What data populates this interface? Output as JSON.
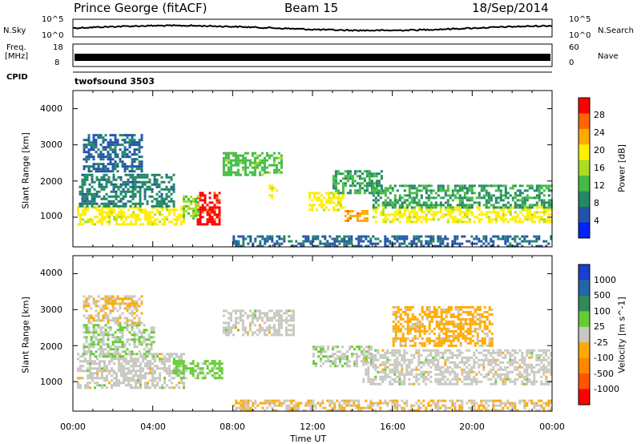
{
  "header": {
    "station": "Prince George (fitACF)",
    "beam": "Beam 15",
    "date": "18/Sep/2014"
  },
  "top_panels": {
    "nsky": {
      "label": "N.Sky",
      "tick_top": "10^5",
      "tick_bottom": "10^0",
      "right_top": "10^5",
      "right_bottom": "10^0",
      "right_label": "N.Search"
    },
    "freq": {
      "label_line1": "Freq.",
      "label_line2": "[MHz]",
      "tick_top": "18",
      "tick_bottom": "8",
      "right_top": "60",
      "right_bottom": "0",
      "right_label": "Nave"
    },
    "cpid": {
      "label": "CPID",
      "program": "twofsound 3503"
    }
  },
  "axes": {
    "xlabel": "Time UT",
    "xticks": [
      "00:00",
      "04:00",
      "08:00",
      "12:00",
      "16:00",
      "20:00",
      "00:00"
    ],
    "ylabel": "Slant Range [km]",
    "yticks": [
      "1000",
      "2000",
      "3000",
      "4000"
    ]
  },
  "colorbars": {
    "power": {
      "label": "Power [dB]",
      "ticks": [
        "28",
        "24",
        "20",
        "16",
        "12",
        "8",
        "4"
      ],
      "colors": [
        "#ff0000",
        "#ff6600",
        "#ffaa00",
        "#ffee00",
        "#aadd22",
        "#44bb44",
        "#228866",
        "#2255aa",
        "#0022ff"
      ]
    },
    "velocity": {
      "label": "Velocity [m s^-1]",
      "ticks": [
        "1000",
        "500",
        "100",
        "25",
        "-25",
        "-100",
        "-500",
        "-1000"
      ],
      "colors": [
        "#1a3fd0",
        "#2266aa",
        "#2e8b57",
        "#66cc33",
        "#c8c8c0",
        "#ffaa00",
        "#ff8800",
        "#ff5500",
        "#ff0000"
      ]
    }
  },
  "chart_data": [
    {
      "type": "heatmap",
      "title": "Power",
      "xlabel": "Time UT",
      "ylabel": "Slant Range [km]",
      "x_range": [
        "00:00",
        "24:00"
      ],
      "ylim": [
        180,
        4500
      ],
      "colorbar": {
        "label": "Power [dB]",
        "range": [
          0,
          30
        ]
      },
      "regions": [
        {
          "t0": 0.2,
          "t1": 5.5,
          "r0": 800,
          "r1": 1300,
          "value": 18
        },
        {
          "t0": 0.3,
          "t1": 5.0,
          "r0": 1300,
          "r1": 2200,
          "value": 8
        },
        {
          "t0": 0.5,
          "t1": 3.5,
          "r0": 2300,
          "r1": 3300,
          "value": 6
        },
        {
          "t0": 6.2,
          "t1": 7.3,
          "r0": 800,
          "r1": 1700,
          "value": 28
        },
        {
          "t0": 5.5,
          "t1": 6.3,
          "r0": 1000,
          "r1": 1600,
          "value": 14
        },
        {
          "t0": 7.5,
          "t1": 10.5,
          "r0": 2200,
          "r1": 2800,
          "value": 12
        },
        {
          "t0": 9.8,
          "t1": 10.2,
          "r0": 1500,
          "r1": 1900,
          "value": 18
        },
        {
          "t0": 11.8,
          "t1": 13.5,
          "r0": 1200,
          "r1": 1700,
          "value": 18
        },
        {
          "t0": 13.0,
          "t1": 15.5,
          "r0": 1700,
          "r1": 2300,
          "value": 10
        },
        {
          "t0": 13.6,
          "t1": 14.8,
          "r0": 900,
          "r1": 1200,
          "value": 22
        },
        {
          "t0": 15.0,
          "t1": 24.0,
          "r0": 900,
          "r1": 1300,
          "value": 18
        },
        {
          "t0": 15.0,
          "t1": 24.0,
          "r0": 1300,
          "r1": 1900,
          "value": 10
        },
        {
          "t0": 8.0,
          "t1": 24.0,
          "r0": 200,
          "r1": 500,
          "value": 6
        }
      ]
    },
    {
      "type": "heatmap",
      "title": "Velocity",
      "xlabel": "Time UT",
      "ylabel": "Slant Range [km]",
      "x_range": [
        "00:00",
        "24:00"
      ],
      "ylim": [
        180,
        4500
      ],
      "colorbar": {
        "label": "Velocity [m s^-1]",
        "range": [
          -1000,
          1000
        ]
      },
      "regions": [
        {
          "t0": 0.2,
          "t1": 5.5,
          "r0": 800,
          "r1": 1800,
          "value": 0
        },
        {
          "t0": 0.5,
          "t1": 4.0,
          "r0": 1700,
          "r1": 2600,
          "value": 100
        },
        {
          "t0": 0.5,
          "t1": 3.5,
          "r0": 2600,
          "r1": 3400,
          "value": -100
        },
        {
          "t0": 5.0,
          "t1": 7.5,
          "r0": 1100,
          "r1": 1600,
          "value": 200
        },
        {
          "t0": 7.5,
          "t1": 11.0,
          "r0": 2300,
          "r1": 3000,
          "value": 0
        },
        {
          "t0": 12.0,
          "t1": 15.0,
          "r0": 1400,
          "r1": 2000,
          "value": 100
        },
        {
          "t0": 14.5,
          "t1": 24.0,
          "r0": 900,
          "r1": 1900,
          "value": 0
        },
        {
          "t0": 16.0,
          "t1": 21.0,
          "r0": 2000,
          "r1": 3100,
          "value": -200
        },
        {
          "t0": 8.0,
          "t1": 24.0,
          "r0": 200,
          "r1": 500,
          "value": -100
        }
      ]
    }
  ]
}
